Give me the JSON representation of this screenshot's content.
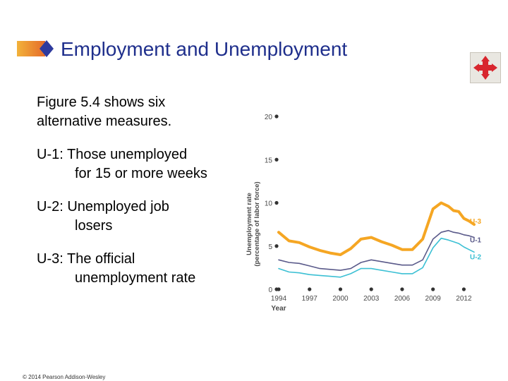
{
  "slide": {
    "title": "Employment and Unemployment",
    "bullets": [
      {
        "line1": "Figure 5.4 shows six",
        "line2": "alternative measures."
      },
      {
        "line1": "U-1: Those unemployed",
        "line2": "for 15 or more weeks"
      },
      {
        "line1": "U-2: Unemployed job",
        "line2": "losers"
      },
      {
        "line1": "U-3: The official",
        "line2": "unemployment rate"
      }
    ],
    "copyright": "© 2014 Pearson Addison-Wesley",
    "nav_icon": "four-way-arrows-icon"
  },
  "colors": {
    "title": "#1f2f8c",
    "u3": "#f5a623",
    "u1": "#5a5a8a",
    "u2": "#3cc0d4",
    "axis_text": "#4a4a4a"
  },
  "chart_data": {
    "type": "line",
    "ylabel": "Unemployment rate (percentage of labor force)",
    "xlabel": "Year",
    "ylim": [
      0,
      20
    ],
    "yticks": [
      0,
      5,
      10,
      15,
      20
    ],
    "xticks": [
      1994,
      1997,
      2000,
      2003,
      2006,
      2009,
      2012
    ],
    "xlim": [
      1994,
      2013
    ],
    "grid": false,
    "series": [
      {
        "name": "U-3",
        "color": "#f5a623",
        "x": [
          1994,
          1995,
          1996,
          1997,
          1998,
          1999,
          2000,
          2001,
          2002,
          2003,
          2004,
          2005,
          2006,
          2007,
          2008,
          2009,
          2009.8,
          2010.5,
          2011,
          2011.5,
          2012,
          2012.5,
          2013
        ],
        "y": [
          6.6,
          5.6,
          5.4,
          4.9,
          4.5,
          4.2,
          4.0,
          4.7,
          5.8,
          6.0,
          5.5,
          5.1,
          4.6,
          4.6,
          5.8,
          9.3,
          10.0,
          9.6,
          9.1,
          9.0,
          8.2,
          7.9,
          7.5
        ]
      },
      {
        "name": "U-1",
        "color": "#5a5a8a",
        "x": [
          1994,
          1995,
          1996,
          1997,
          1998,
          1999,
          2000,
          2001,
          2002,
          2003,
          2004,
          2005,
          2006,
          2007,
          2008,
          2009,
          2009.8,
          2010.5,
          2011,
          2011.5,
          2012,
          2012.5,
          2013
        ],
        "y": [
          3.4,
          3.1,
          3.0,
          2.7,
          2.4,
          2.3,
          2.2,
          2.4,
          3.1,
          3.4,
          3.2,
          3.0,
          2.8,
          2.8,
          3.4,
          5.8,
          6.6,
          6.8,
          6.6,
          6.5,
          6.3,
          6.2,
          6.0
        ]
      },
      {
        "name": "U-2",
        "color": "#3cc0d4",
        "x": [
          1994,
          1995,
          1996,
          1997,
          1998,
          1999,
          2000,
          2001,
          2002,
          2003,
          2004,
          2005,
          2006,
          2007,
          2008,
          2009,
          2009.8,
          2010.5,
          2011,
          2011.5,
          2012,
          2012.5,
          2013
        ],
        "y": [
          2.4,
          2.0,
          1.9,
          1.7,
          1.6,
          1.5,
          1.4,
          1.8,
          2.4,
          2.4,
          2.2,
          2.0,
          1.8,
          1.8,
          2.5,
          4.8,
          5.9,
          5.7,
          5.5,
          5.3,
          4.9,
          4.6,
          4.3
        ]
      }
    ]
  }
}
